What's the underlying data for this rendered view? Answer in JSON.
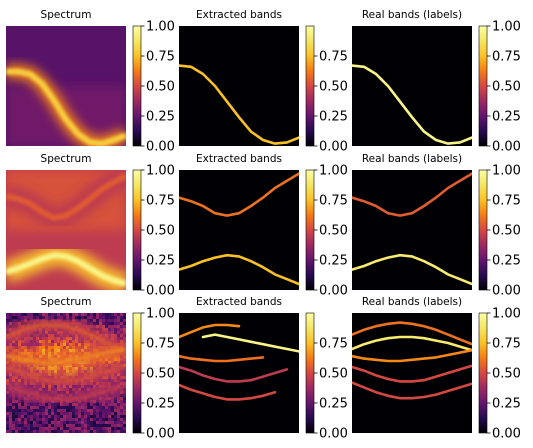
{
  "figure": {
    "layout": {
      "rows": 3,
      "cols": 3
    },
    "colormap": "inferno",
    "background_color": "#ffffff",
    "panels": [
      {
        "row": 0,
        "col": 0,
        "title": "Spectrum",
        "kind": "spectrum",
        "bands": [
          [
            0.62,
            0.62,
            0.6,
            0.52,
            0.38,
            0.22,
            0.1,
            0.03,
            0.02,
            0.05,
            0.09
          ]
        ],
        "intensity": [
          0.8
        ]
      },
      {
        "row": 0,
        "col": 1,
        "title": "Extracted bands",
        "kind": "bands",
        "bands": [
          [
            0.67,
            0.66,
            0.6,
            0.5,
            0.37,
            0.24,
            0.12,
            0.05,
            0.02,
            0.03,
            0.07
          ]
        ],
        "intensity": [
          0.75
        ]
      },
      {
        "row": 0,
        "col": 2,
        "title": "Real bands (labels)",
        "kind": "bands",
        "bands": [
          [
            0.67,
            0.66,
            0.6,
            0.5,
            0.37,
            0.24,
            0.12,
            0.05,
            0.02,
            0.03,
            0.07
          ]
        ],
        "intensity": [
          0.95
        ]
      },
      {
        "row": 1,
        "col": 0,
        "title": "Spectrum",
        "kind": "spectrum",
        "bands": [
          [
            0.78,
            0.76,
            0.72,
            0.65,
            0.6,
            0.62,
            0.68,
            0.76,
            0.84,
            0.9,
            0.95
          ],
          [
            0.15,
            0.18,
            0.22,
            0.26,
            0.29,
            0.28,
            0.24,
            0.18,
            0.12,
            0.08,
            0.05
          ]
        ],
        "intensity": [
          0.55,
          0.95
        ]
      },
      {
        "row": 1,
        "col": 1,
        "title": "Extracted bands",
        "kind": "bands",
        "bands": [
          [
            0.77,
            0.74,
            0.7,
            0.64,
            0.62,
            0.64,
            0.7,
            0.77,
            0.85,
            0.91,
            0.97
          ],
          [
            0.17,
            0.2,
            0.24,
            0.27,
            0.29,
            0.28,
            0.24,
            0.19,
            0.13,
            0.09,
            0.05
          ]
        ],
        "intensity": [
          0.6,
          0.75
        ]
      },
      {
        "row": 1,
        "col": 2,
        "title": "Real bands (labels)",
        "kind": "bands",
        "bands": [
          [
            0.77,
            0.74,
            0.7,
            0.64,
            0.62,
            0.64,
            0.7,
            0.77,
            0.85,
            0.91,
            0.97
          ],
          [
            0.17,
            0.2,
            0.24,
            0.27,
            0.29,
            0.28,
            0.24,
            0.19,
            0.13,
            0.09,
            0.05
          ]
        ],
        "intensity": [
          0.55,
          0.9
        ]
      },
      {
        "row": 2,
        "col": 0,
        "title": "Spectrum",
        "kind": "spectrum",
        "noisy": true,
        "bands": [
          [
            0.8,
            0.84,
            0.88,
            0.9,
            0.9,
            0.89,
            0.86,
            0.82,
            0.77,
            0.72,
            0.68
          ],
          [
            0.65,
            0.62,
            0.6,
            0.58,
            0.58,
            0.6,
            0.62,
            0.64,
            0.66,
            0.68,
            0.7
          ],
          [
            0.55,
            0.52,
            0.48,
            0.45,
            0.43,
            0.43,
            0.44,
            0.47,
            0.5,
            0.53,
            0.56
          ],
          [
            0.4,
            0.36,
            0.33,
            0.3,
            0.28,
            0.28,
            0.29,
            0.31,
            0.34,
            0.37,
            0.4
          ]
        ],
        "intensity": [
          0.6,
          0.7,
          0.55,
          0.5
        ]
      },
      {
        "row": 2,
        "col": 1,
        "title": "Extracted bands",
        "kind": "bands",
        "bands": [
          [
            0.8,
            0.84,
            0.88,
            0.9,
            0.9,
            0.89,
            null,
            null,
            null,
            null,
            null
          ],
          [
            null,
            null,
            0.8,
            0.82,
            0.8,
            0.78,
            0.76,
            0.74,
            0.72,
            0.7,
            0.68
          ],
          [
            0.64,
            0.62,
            0.61,
            0.6,
            0.6,
            0.61,
            0.62,
            0.63,
            null,
            null,
            null
          ],
          [
            0.55,
            0.52,
            0.48,
            0.45,
            0.43,
            0.43,
            0.44,
            0.47,
            0.5,
            0.53,
            null
          ],
          [
            0.4,
            0.36,
            0.33,
            0.3,
            0.28,
            0.28,
            0.29,
            0.31,
            0.34,
            null,
            null
          ]
        ],
        "intensity": [
          0.65,
          0.95,
          0.6,
          0.45,
          0.5
        ]
      },
      {
        "row": 2,
        "col": 2,
        "title": "Real bands (labels)",
        "kind": "bands",
        "bands": [
          [
            0.82,
            0.86,
            0.89,
            0.91,
            0.92,
            0.91,
            0.89,
            0.86,
            0.82,
            0.78,
            0.74
          ],
          [
            0.7,
            0.74,
            0.77,
            0.79,
            0.8,
            0.8,
            0.79,
            0.77,
            0.75,
            0.72,
            0.69
          ],
          [
            0.64,
            0.62,
            0.61,
            0.6,
            0.6,
            0.61,
            0.62,
            0.63,
            0.65,
            0.67,
            0.69
          ],
          [
            0.55,
            0.52,
            0.48,
            0.45,
            0.43,
            0.43,
            0.44,
            0.47,
            0.5,
            0.53,
            0.56
          ],
          [
            0.42,
            0.38,
            0.34,
            0.31,
            0.29,
            0.29,
            0.3,
            0.32,
            0.35,
            0.38,
            0.41
          ]
        ],
        "intensity": [
          0.6,
          0.9,
          0.65,
          0.5,
          0.5
        ]
      }
    ]
  },
  "chart_data": [
    {
      "type": "heatmap",
      "title": "Spectrum",
      "colorbar": {
        "range": [
          0,
          1
        ],
        "ticks": [
          "0.00",
          "0.25",
          "0.50",
          "0.75",
          "1.00"
        ]
      }
    },
    {
      "type": "heatmap",
      "title": "Extracted bands",
      "colorbar": {
        "range": [
          0,
          1
        ],
        "ticks": [
          "0.00",
          "0.25",
          "0.50",
          "0.75"
        ]
      }
    },
    {
      "type": "heatmap",
      "title": "Real bands (labels)",
      "colorbar": {
        "range": [
          0,
          1
        ],
        "ticks": [
          "0.00",
          "0.25",
          "0.50",
          "0.75",
          "1.00"
        ]
      }
    },
    {
      "type": "heatmap",
      "title": "Spectrum",
      "colorbar": {
        "range": [
          0,
          1
        ],
        "ticks": [
          "0.00",
          "0.25",
          "0.50",
          "0.75",
          "1.00"
        ]
      }
    },
    {
      "type": "heatmap",
      "title": "Extracted bands",
      "colorbar": {
        "range": [
          0,
          1
        ],
        "ticks": [
          "0.00",
          "0.25",
          "0.50",
          "0.75",
          "1.00"
        ]
      }
    },
    {
      "type": "heatmap",
      "title": "Real bands (labels)",
      "colorbar": {
        "range": [
          0,
          1
        ],
        "ticks": [
          "0.00",
          "0.25",
          "0.50",
          "0.75",
          "1.00"
        ]
      }
    },
    {
      "type": "heatmap",
      "title": "Spectrum",
      "colorbar": {
        "range": [
          0,
          1
        ],
        "ticks": [
          "0.00",
          "0.25",
          "0.50",
          "0.75",
          "1.00"
        ]
      }
    },
    {
      "type": "heatmap",
      "title": "Extracted bands",
      "colorbar": {
        "range": [
          0,
          1
        ],
        "ticks": [
          "0.00",
          "0.25",
          "0.50",
          "0.75"
        ]
      }
    },
    {
      "type": "heatmap",
      "title": "Real bands (labels)",
      "colorbar": {
        "range": [
          0,
          1
        ],
        "ticks": [
          "0.00",
          "0.25",
          "0.50",
          "0.75",
          "1.00"
        ]
      }
    }
  ]
}
